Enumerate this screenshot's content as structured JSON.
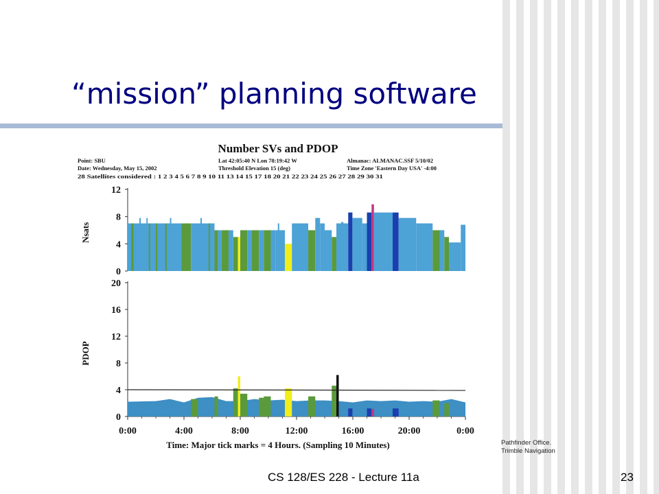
{
  "slide": {
    "title": "“mission” planning software",
    "credit_line1": "Pathfinder Office.",
    "credit_line2": "Trimble Navigation",
    "footer": "CS 128/ES 228 - Lecture 11a",
    "page_number": "23"
  },
  "colors": {
    "title": "#000080",
    "rule": "#a8bbd6",
    "blue": "#4da2d6",
    "green": "#5b9a3c",
    "darkblue": "#1b3fae",
    "yellow": "#f2ee1c",
    "magenta": "#c2357e",
    "black": "#111111"
  },
  "chart_data": [
    {
      "type": "bar",
      "title": "Number SVs and PDOP",
      "header": {
        "point": "Point: SBU",
        "date": "Date: Wednesday, May 15, 2002",
        "satellites": "28 Satellites considered : 1 2 3 4 5 6 7 8 9 10 11 13 14 15 17 18 20 21 22 23 24 25 26 27 28 29 30 31",
        "location": "Lat 42:05:40 N   Lon 78:19:42 W",
        "threshold": "Threshold Elevation 15 (deg)",
        "almanac": "Almanac: ALMANAC.SSF  5/10/02",
        "timezone": "Time Zone 'Eastern Day USA'  -4:00"
      },
      "ylabel": "Nsats",
      "ylim": [
        0,
        12
      ],
      "yticks": [
        "12",
        "8",
        "4",
        "0"
      ],
      "xlim": [
        0,
        24
      ],
      "note": "x values are hours 0:00–24:00",
      "series": [
        {
          "x": [
            0,
            3.83
          ],
          "y": 7,
          "c": "blue"
        },
        {
          "x": [
            0.25,
            0.42
          ],
          "y": 7,
          "c": "green"
        },
        {
          "x": [
            0.83,
            0.93
          ],
          "y": 7.8,
          "c": "blue"
        },
        {
          "x": [
            1.33,
            1.42
          ],
          "y": 7.8,
          "c": "blue"
        },
        {
          "x": [
            1.5,
            1.6
          ],
          "y": 7,
          "c": "green"
        },
        {
          "x": [
            2.0,
            2.1
          ],
          "y": 7,
          "c": "green"
        },
        {
          "x": [
            2.67,
            2.77
          ],
          "y": 7,
          "c": "green"
        },
        {
          "x": [
            3.0,
            3.1
          ],
          "y": 7.8,
          "c": "blue"
        },
        {
          "x": [
            3.83,
            4.5
          ],
          "y": 7,
          "c": "green"
        },
        {
          "x": [
            4.5,
            5.0
          ],
          "y": 7,
          "c": "blue"
        },
        {
          "x": [
            5.0,
            6.17
          ],
          "y": 7,
          "c": "blue"
        },
        {
          "x": [
            5.17,
            5.27
          ],
          "y": 7.8,
          "c": "blue"
        },
        {
          "x": [
            5.75,
            5.85
          ],
          "y": 7,
          "c": "green"
        },
        {
          "x": [
            6.17,
            6.42
          ],
          "y": 6,
          "c": "green"
        },
        {
          "x": [
            6.42,
            6.67
          ],
          "y": 6,
          "c": "blue"
        },
        {
          "x": [
            6.67,
            7.17
          ],
          "y": 6,
          "c": "green"
        },
        {
          "x": [
            7.17,
            7.5
          ],
          "y": 6,
          "c": "blue"
        },
        {
          "x": [
            7.5,
            7.83
          ],
          "y": 5,
          "c": "green"
        },
        {
          "x": [
            7.83,
            8.0
          ],
          "y": 5,
          "c": "yellow"
        },
        {
          "x": [
            8.0,
            8.5
          ],
          "y": 6,
          "c": "green"
        },
        {
          "x": [
            8.5,
            8.83
          ],
          "y": 6,
          "c": "blue"
        },
        {
          "x": [
            8.83,
            9.33
          ],
          "y": 6,
          "c": "green"
        },
        {
          "x": [
            9.33,
            9.67
          ],
          "y": 6,
          "c": "blue"
        },
        {
          "x": [
            9.67,
            10.17
          ],
          "y": 6,
          "c": "green"
        },
        {
          "x": [
            10.17,
            10.5
          ],
          "y": 6,
          "c": "blue"
        },
        {
          "x": [
            10.5,
            11.17
          ],
          "y": 6,
          "c": "blue"
        },
        {
          "x": [
            10.67,
            10.77
          ],
          "y": 7,
          "c": "blue"
        },
        {
          "x": [
            11.17,
            11.67
          ],
          "y": 4,
          "c": "yellow"
        },
        {
          "x": [
            11.67,
            12.83
          ],
          "y": 7,
          "c": "blue"
        },
        {
          "x": [
            12.83,
            13.33
          ],
          "y": 6,
          "c": "green"
        },
        {
          "x": [
            13.33,
            13.67
          ],
          "y": 7.8,
          "c": "blue"
        },
        {
          "x": [
            13.67,
            14.0
          ],
          "y": 7,
          "c": "blue"
        },
        {
          "x": [
            14.0,
            14.5
          ],
          "y": 6,
          "c": "blue"
        },
        {
          "x": [
            14.5,
            14.83
          ],
          "y": 5,
          "c": "green"
        },
        {
          "x": [
            14.83,
            15.67
          ],
          "y": 7,
          "c": "blue"
        },
        {
          "x": [
            15.17,
            15.33
          ],
          "y": 7.2,
          "c": "blue"
        },
        {
          "x": [
            15.67,
            15.97
          ],
          "y": 8.6,
          "c": "darkblue"
        },
        {
          "x": [
            15.97,
            16.67
          ],
          "y": 7.8,
          "c": "blue"
        },
        {
          "x": [
            16.67,
            17.0
          ],
          "y": 7,
          "c": "blue"
        },
        {
          "x": [
            17.0,
            17.33
          ],
          "y": 8.6,
          "c": "darkblue"
        },
        {
          "x": [
            17.33,
            17.5
          ],
          "y": 9.8,
          "c": "magenta"
        },
        {
          "x": [
            17.5,
            18.83
          ],
          "y": 8.6,
          "c": "blue"
        },
        {
          "x": [
            18.83,
            19.25
          ],
          "y": 8.6,
          "c": "darkblue"
        },
        {
          "x": [
            19.25,
            20.17
          ],
          "y": 7.8,
          "c": "blue"
        },
        {
          "x": [
            20.17,
            20.5
          ],
          "y": 7.8,
          "c": "blue"
        },
        {
          "x": [
            20.5,
            21.67
          ],
          "y": 7,
          "c": "blue"
        },
        {
          "x": [
            21.67,
            22.17
          ],
          "y": 6,
          "c": "green"
        },
        {
          "x": [
            22.17,
            22.5
          ],
          "y": 6,
          "c": "blue"
        },
        {
          "x": [
            22.5,
            22.83
          ],
          "y": 5,
          "c": "green"
        },
        {
          "x": [
            22.83,
            23.67
          ],
          "y": 4.2,
          "c": "blue"
        },
        {
          "x": [
            23.67,
            24
          ],
          "y": 6.8,
          "c": "blue"
        }
      ]
    },
    {
      "type": "area",
      "ylabel": "PDOP",
      "ylim": [
        0,
        20
      ],
      "yticks": [
        "20",
        "16",
        "12",
        "8",
        "4",
        "0"
      ],
      "xlim": [
        0,
        24
      ],
      "xticks": [
        "0:00",
        "4:00",
        "8:00",
        "12:00",
        "16:00",
        "20:00",
        "0:00"
      ],
      "xlabel": "Time: Major tick marks = 4 Hours. (Sampling 10 Minutes)",
      "threshold": 4,
      "line": {
        "x": [
          0,
          2,
          3,
          4,
          5,
          6,
          7,
          8,
          9,
          10,
          11,
          12,
          13,
          14,
          15,
          16,
          17,
          18,
          19,
          20,
          21,
          22,
          23,
          24
        ],
        "y": [
          2.2,
          2.3,
          2.6,
          2.1,
          2.8,
          2.9,
          2.3,
          2.3,
          2.6,
          2.4,
          2.5,
          2.3,
          2.4,
          2.4,
          2.3,
          2.1,
          2.4,
          2.3,
          2.4,
          2.2,
          2.3,
          2.2,
          2.6,
          2.1
        ]
      },
      "series": [
        {
          "x": [
            4.5,
            5.0
          ],
          "y": 2.6,
          "c": "green"
        },
        {
          "x": [
            6.17,
            6.42
          ],
          "y": 3.0,
          "c": "green"
        },
        {
          "x": [
            7.5,
            7.83
          ],
          "y": 4.2,
          "c": "green"
        },
        {
          "x": [
            7.83,
            8.0
          ],
          "y": 6.0,
          "c": "yellow"
        },
        {
          "x": [
            8.0,
            8.5
          ],
          "y": 3.4,
          "c": "green"
        },
        {
          "x": [
            9.33,
            9.67
          ],
          "y": 2.8,
          "c": "green"
        },
        {
          "x": [
            9.67,
            10.17
          ],
          "y": 3.0,
          "c": "green"
        },
        {
          "x": [
            11.17,
            11.67
          ],
          "y": 4.2,
          "c": "yellow"
        },
        {
          "x": [
            12.83,
            13.33
          ],
          "y": 3.0,
          "c": "green"
        },
        {
          "x": [
            14.5,
            14.83
          ],
          "y": 4.6,
          "c": "green"
        },
        {
          "x": [
            14.83,
            15.0
          ],
          "y": 6.2,
          "c": "black"
        },
        {
          "x": [
            15.67,
            15.97
          ],
          "y": 1.2,
          "c": "darkblue"
        },
        {
          "x": [
            17.0,
            17.33
          ],
          "y": 1.2,
          "c": "darkblue"
        },
        {
          "x": [
            17.33,
            17.5
          ],
          "y": 1.1,
          "c": "magenta"
        },
        {
          "x": [
            18.83,
            19.25
          ],
          "y": 1.2,
          "c": "darkblue"
        },
        {
          "x": [
            21.67,
            22.17
          ],
          "y": 2.4,
          "c": "green"
        },
        {
          "x": [
            22.5,
            22.83
          ],
          "y": 2.0,
          "c": "green"
        }
      ]
    }
  ]
}
